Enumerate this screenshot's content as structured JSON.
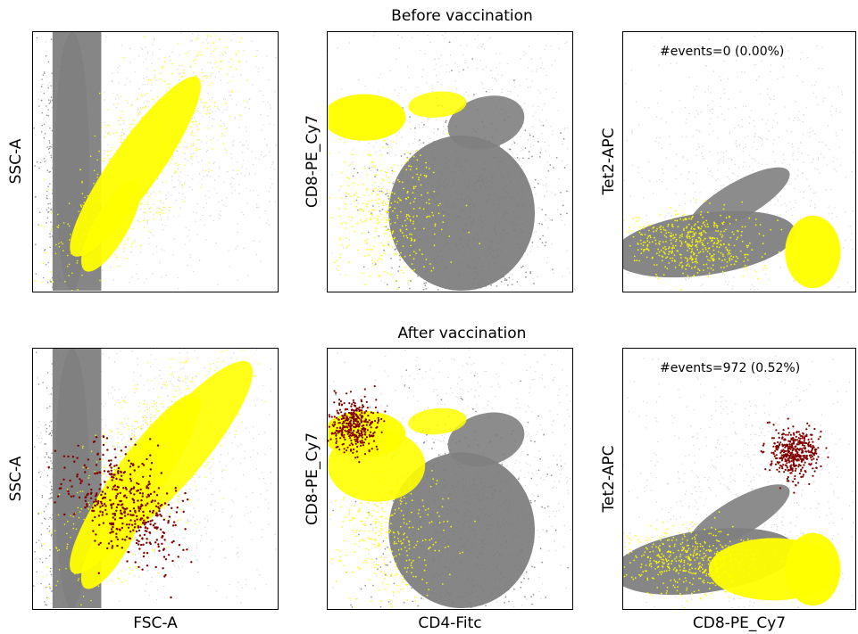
{
  "row_titles": [
    "Before vaccination",
    "After vaccination"
  ],
  "colors": {
    "background_events": "#808080",
    "light_events": "#d0d0d0",
    "gated_events": "#ffff00",
    "tetramer_positive": "#800000",
    "frame": "#000000"
  },
  "chart_data": [
    {
      "type": "scatter",
      "row": "Before vaccination",
      "xlabel": "",
      "ylabel": "SSC-A",
      "series": [
        {
          "color": "gray",
          "x": [
            0.05,
            0.1,
            0.2,
            0.3,
            0.5,
            0.7,
            0.9
          ],
          "y": [
            0.1,
            0.5,
            0.95,
            0.95,
            0.9,
            0.95,
            0.9
          ]
        },
        {
          "color": "yellow",
          "x": [
            0.2,
            0.3,
            0.4,
            0.5,
            0.6
          ],
          "y": [
            0.08,
            0.35,
            0.55,
            0.68,
            0.75
          ]
        }
      ]
    },
    {
      "type": "scatter",
      "row": "Before vaccination",
      "xlabel": "",
      "ylabel": "CD8-PE_Cy7",
      "series": [
        {
          "color": "gray",
          "x": [
            0.2,
            0.35,
            0.5,
            0.6,
            0.75
          ],
          "y": [
            0.2,
            0.4,
            0.3,
            0.7,
            0.85
          ]
        },
        {
          "color": "yellow",
          "x": [
            0.1,
            0.2,
            0.3,
            0.5
          ],
          "y": [
            0.68,
            0.7,
            0.72,
            0.75
          ]
        }
      ]
    },
    {
      "type": "scatter",
      "row": "Before vaccination",
      "xlabel": "",
      "ylabel": "Tet2-APC",
      "annotation": "#events=0 (0.00%)",
      "series": [
        {
          "color": "gray",
          "x": [
            0.1,
            0.3,
            0.5,
            0.6,
            0.75
          ],
          "y": [
            0.1,
            0.2,
            0.3,
            0.4,
            0.15
          ]
        },
        {
          "color": "yellow",
          "x": [
            0.1,
            0.4,
            0.82
          ],
          "y": [
            0.08,
            0.1,
            0.15
          ]
        }
      ]
    },
    {
      "type": "scatter",
      "row": "After vaccination",
      "xlabel": "FSC-A",
      "ylabel": "SSC-A",
      "series": [
        {
          "color": "gray",
          "x": [
            0.05,
            0.1,
            0.2,
            0.3,
            0.5,
            0.7,
            0.9
          ],
          "y": [
            0.1,
            0.5,
            0.95,
            0.95,
            0.9,
            0.95,
            0.9
          ]
        },
        {
          "color": "yellow",
          "x": [
            0.2,
            0.3,
            0.5,
            0.7
          ],
          "y": [
            0.1,
            0.4,
            0.65,
            0.85
          ]
        },
        {
          "color": "darkred",
          "x": [
            0.2,
            0.3,
            0.38,
            0.45,
            0.55
          ],
          "y": [
            0.25,
            0.35,
            0.45,
            0.55,
            0.65
          ]
        }
      ]
    },
    {
      "type": "scatter",
      "row": "After vaccination",
      "xlabel": "CD4-Fitc",
      "ylabel": "CD8-PE_Cy7",
      "series": [
        {
          "color": "gray",
          "x": [
            0.2,
            0.35,
            0.5,
            0.6,
            0.75
          ],
          "y": [
            0.2,
            0.4,
            0.3,
            0.7,
            0.85
          ]
        },
        {
          "color": "yellow",
          "x": [
            0.1,
            0.2,
            0.3,
            0.5
          ],
          "y": [
            0.55,
            0.7,
            0.72,
            0.75
          ]
        },
        {
          "color": "darkred",
          "x": [
            0.12
          ],
          "y": [
            0.72
          ]
        }
      ]
    },
    {
      "type": "scatter",
      "row": "After vaccination",
      "xlabel": "CD8-PE_Cy7",
      "ylabel": "Tet2-APC",
      "annotation": "#events=972 (0.52%)",
      "series": [
        {
          "color": "gray",
          "x": [
            0.1,
            0.3,
            0.5,
            0.6,
            0.75
          ],
          "y": [
            0.1,
            0.2,
            0.3,
            0.4,
            0.15
          ]
        },
        {
          "color": "yellow",
          "x": [
            0.3,
            0.5,
            0.7,
            0.85
          ],
          "y": [
            0.1,
            0.12,
            0.15,
            0.2
          ]
        },
        {
          "color": "darkred",
          "x": [
            0.72
          ],
          "y": [
            0.6
          ]
        }
      ]
    }
  ]
}
